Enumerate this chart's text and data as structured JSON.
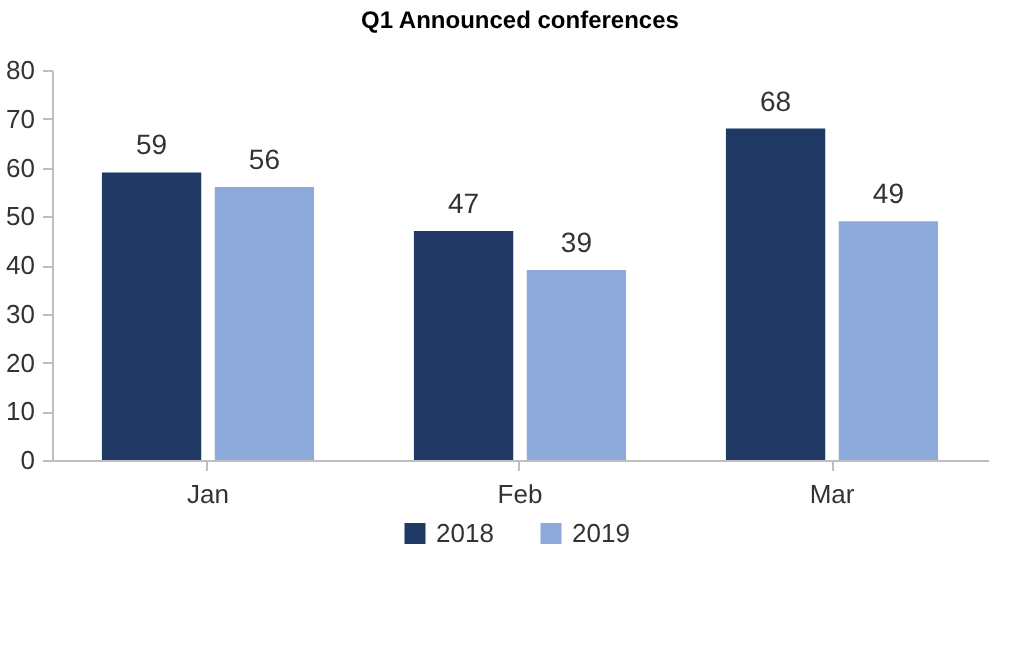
{
  "chart_data": {
    "type": "bar",
    "title": "Q1 Announced conferences",
    "categories": [
      "Jan",
      "Feb",
      "Mar"
    ],
    "series": [
      {
        "name": "2018",
        "color": "#1f3864",
        "values": [
          59,
          47,
          68
        ]
      },
      {
        "name": "2019",
        "color": "#8eaadb",
        "values": [
          56,
          39,
          49
        ]
      }
    ],
    "ylim": [
      0,
      80
    ],
    "yticks": [
      0,
      10,
      20,
      30,
      40,
      50,
      60,
      70,
      80
    ],
    "grid": false,
    "legend": "bottom",
    "data_labels": true
  }
}
